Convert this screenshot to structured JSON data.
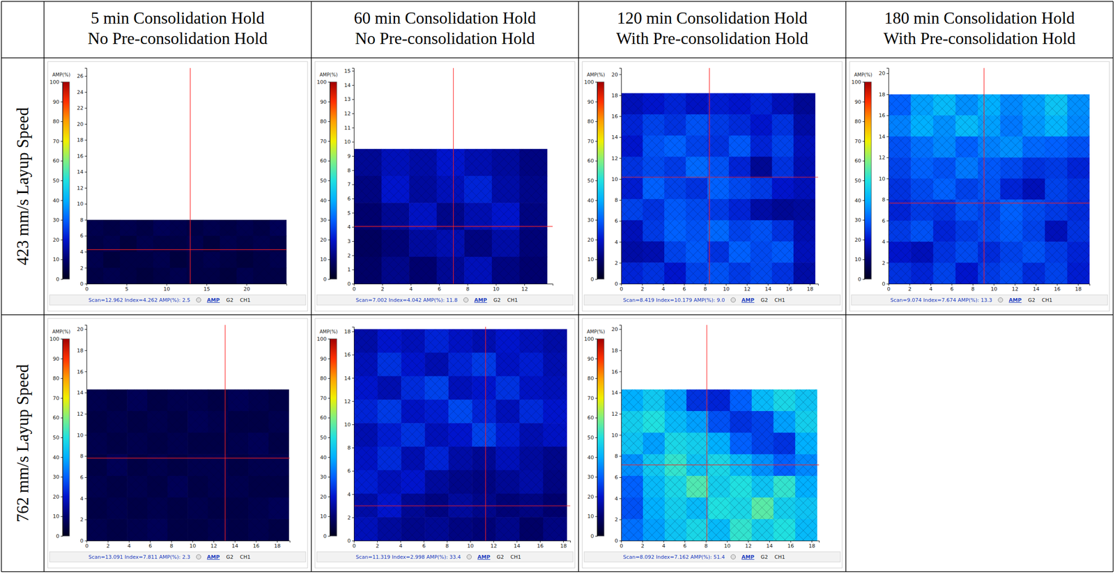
{
  "column_heads": [
    [
      "5 min Consolidation Hold",
      "No Pre-consolidation Hold"
    ],
    [
      "60 min Consolidation Hold",
      "No Pre-consolidation Hold"
    ],
    [
      "120 min Consolidation Hold",
      "With Pre-consolidation Hold"
    ],
    [
      "180 min Consolidation Hold",
      "With Pre-consolidation Hold"
    ]
  ],
  "row_heads": [
    "423 mm/s Layup Speed",
    "762 mm/s Layup Speed"
  ],
  "chart_data": [
    {
      "type": "heatmap",
      "xlim": [
        0,
        25
      ],
      "xticks": [
        0,
        5,
        10,
        15,
        20
      ],
      "ylim": [
        0,
        27
      ],
      "yticks": [
        0,
        2,
        4,
        6,
        8,
        10,
        12,
        14,
        16,
        18,
        20,
        22,
        24,
        26
      ],
      "extent": {
        "x": [
          0,
          25
        ],
        "y": [
          0,
          8
        ]
      },
      "cells": [
        [
          6,
          5,
          6,
          5,
          7,
          6,
          5,
          6,
          5,
          6,
          5,
          7
        ],
        [
          5,
          6,
          4,
          6,
          5,
          5,
          6,
          4,
          6,
          5,
          6,
          5
        ],
        [
          6,
          4,
          5,
          5,
          6,
          4,
          5,
          6,
          5,
          4,
          5,
          6
        ],
        [
          5,
          6,
          5,
          4,
          5,
          6,
          5,
          5,
          4,
          6,
          5,
          5
        ]
      ],
      "colorbar": {
        "label": "AMP(%)",
        "range": [
          0,
          100
        ],
        "ticks": [
          0,
          10,
          20,
          30,
          40,
          50,
          60,
          70,
          80,
          90,
          100
        ]
      },
      "cursor": {
        "x": 12.962,
        "y": 4.262
      },
      "status": "Scan=12.962 Index=4.262 AMP(%): 2.5",
      "tabs": [
        "AMP",
        "G2",
        "CH1"
      ]
    },
    {
      "type": "heatmap",
      "xlim": [
        0,
        14
      ],
      "xticks": [
        0,
        2,
        4,
        6,
        8,
        10,
        12
      ],
      "ylim": [
        0,
        15.2
      ],
      "yticks": [
        0,
        1,
        2,
        3,
        4,
        5,
        6,
        7,
        8,
        9,
        10,
        11,
        12,
        13,
        14,
        15
      ],
      "extent": {
        "x": [
          0,
          13.6
        ],
        "y": [
          0,
          9.5
        ]
      },
      "cells": [
        [
          14,
          18,
          16,
          20,
          17,
          15,
          12
        ],
        [
          12,
          20,
          15,
          18,
          22,
          16,
          13
        ],
        [
          10,
          14,
          19,
          13,
          17,
          20,
          12
        ],
        [
          8,
          11,
          15,
          17,
          12,
          16,
          11
        ],
        [
          9,
          13,
          10,
          14,
          18,
          12,
          10
        ]
      ],
      "colorbar": {
        "label": "AMP(%)",
        "range": [
          0,
          100
        ],
        "ticks": [
          0,
          10,
          20,
          30,
          40,
          50,
          60,
          70,
          80,
          90,
          100
        ]
      },
      "cursor": {
        "x": 7.002,
        "y": 4.042
      },
      "status": "Scan=7.002 Index=4.042 AMP(%): 11.8",
      "tabs": [
        "AMP",
        "G2",
        "CH1"
      ]
    },
    {
      "type": "heatmap",
      "xlim": [
        0,
        18.8
      ],
      "xticks": [
        0,
        2,
        4,
        6,
        8,
        10,
        12,
        14,
        16,
        18
      ],
      "ylim": [
        0,
        20.6
      ],
      "yticks": [
        0,
        2,
        4,
        6,
        8,
        10,
        12,
        14,
        16,
        18,
        20
      ],
      "extent": {
        "x": [
          0,
          18.5
        ],
        "y": [
          0,
          18.2
        ]
      },
      "cells": [
        [
          18,
          20,
          22,
          19,
          21,
          20,
          22,
          18,
          14
        ],
        [
          22,
          26,
          24,
          28,
          25,
          23,
          20,
          24,
          16
        ],
        [
          20,
          28,
          30,
          26,
          24,
          29,
          22,
          26,
          18
        ],
        [
          24,
          27,
          25,
          31,
          28,
          22,
          14,
          24,
          17
        ],
        [
          21,
          30,
          26,
          24,
          30,
          27,
          25,
          20,
          18
        ],
        [
          26,
          24,
          29,
          27,
          25,
          22,
          16,
          14,
          15
        ],
        [
          18,
          25,
          30,
          28,
          31,
          26,
          28,
          24,
          17
        ],
        [
          16,
          17,
          26,
          29,
          24,
          30,
          27,
          29,
          18
        ],
        [
          22,
          24,
          20,
          26,
          28,
          25,
          27,
          24,
          16
        ]
      ],
      "colorbar": {
        "label": "AMP(%)",
        "range": [
          0,
          100
        ],
        "ticks": [
          0,
          10,
          20,
          30,
          40,
          50,
          60,
          70,
          80,
          90,
          100
        ]
      },
      "cursor": {
        "x": 8.419,
        "y": 10.179
      },
      "status": "Scan=8.419 Index=10.179 AMP(%): 9.0",
      "tabs": [
        "AMP",
        "G2",
        "CH1"
      ]
    },
    {
      "type": "heatmap",
      "xlim": [
        0,
        19.1
      ],
      "xticks": [
        0,
        2,
        4,
        6,
        8,
        10,
        12,
        14,
        16,
        18
      ],
      "ylim": [
        0,
        20.5
      ],
      "yticks": [
        0,
        2,
        4,
        6,
        8,
        10,
        12,
        14,
        16,
        18,
        20
      ],
      "extent": {
        "x": [
          0,
          19.1
        ],
        "y": [
          0,
          18
        ]
      },
      "cells": [
        [
          30,
          38,
          42,
          36,
          40,
          35,
          38,
          44,
          36
        ],
        [
          34,
          40,
          36,
          42,
          38,
          33,
          37,
          41,
          35
        ],
        [
          28,
          32,
          35,
          30,
          34,
          36,
          31,
          30,
          28
        ],
        [
          26,
          30,
          28,
          33,
          29,
          27,
          24,
          25,
          22
        ],
        [
          24,
          27,
          30,
          26,
          28,
          22,
          18,
          26,
          24
        ],
        [
          22,
          25,
          24,
          28,
          26,
          30,
          27,
          25,
          23
        ],
        [
          25,
          28,
          22,
          25,
          27,
          29,
          26,
          18,
          24
        ],
        [
          20,
          18,
          24,
          27,
          23,
          26,
          28,
          25,
          22
        ],
        [
          24,
          22,
          26,
          20,
          25,
          27,
          23,
          26,
          21
        ]
      ],
      "colorbar": {
        "label": "AMP(%)",
        "range": [
          0,
          100
        ],
        "ticks": [
          0,
          10,
          20,
          30,
          40,
          50,
          60,
          70,
          80,
          90,
          100
        ]
      },
      "cursor": {
        "x": 9.074,
        "y": 7.674
      },
      "status": "Scan=9.074 Index=7.674 AMP(%): 13.3",
      "tabs": [
        "AMP",
        "G2",
        "CH1"
      ]
    },
    {
      "type": "heatmap",
      "xlim": [
        0,
        19.2
      ],
      "xticks": [
        0,
        2,
        4,
        6,
        8,
        10,
        12,
        14,
        16,
        18
      ],
      "ylim": [
        0,
        20.4
      ],
      "yticks": [
        0,
        2,
        4,
        6,
        8,
        10,
        12,
        14,
        16,
        18,
        20
      ],
      "extent": {
        "x": [
          0,
          19.1
        ],
        "y": [
          0,
          14.3
        ]
      },
      "cells": [
        [
          6,
          5,
          7,
          5,
          6,
          6,
          5,
          7,
          6,
          5
        ],
        [
          5,
          6,
          5,
          6,
          5,
          7,
          6,
          5,
          5,
          6
        ],
        [
          6,
          5,
          6,
          5,
          6,
          5,
          5,
          6,
          7,
          5
        ],
        [
          5,
          7,
          5,
          6,
          5,
          6,
          6,
          5,
          6,
          6
        ],
        [
          6,
          5,
          6,
          5,
          7,
          5,
          6,
          6,
          5,
          5
        ],
        [
          5,
          6,
          5,
          6,
          5,
          6,
          5,
          5,
          6,
          7
        ],
        [
          6,
          5,
          6,
          7,
          5,
          5,
          6,
          5,
          6,
          5
        ]
      ],
      "colorbar": {
        "label": "AMP(%)",
        "range": [
          0,
          100
        ],
        "ticks": [
          0,
          10,
          20,
          30,
          40,
          50,
          60,
          70,
          80,
          90,
          100
        ]
      },
      "cursor": {
        "x": 13.091,
        "y": 7.811
      },
      "status": "Scan=13.091 Index=7.811 AMP(%): 2.3",
      "tabs": [
        "AMP",
        "G2",
        "CH1"
      ]
    },
    {
      "type": "heatmap",
      "xlim": [
        0,
        18.6
      ],
      "xticks": [
        0,
        2,
        4,
        6,
        8,
        10,
        12,
        14,
        16,
        18
      ],
      "ylim": [
        0,
        18.4
      ],
      "yticks": [
        0,
        2,
        4,
        6,
        8,
        10,
        12,
        14,
        16,
        18
      ],
      "extent": {
        "x": [
          0,
          18.3
        ],
        "y": [
          0,
          18.2
        ]
      },
      "cells": [
        [
          16,
          20,
          18,
          22,
          19,
          17,
          20,
          18,
          16
        ],
        [
          18,
          24,
          20,
          17,
          22,
          25,
          19,
          21,
          17
        ],
        [
          20,
          17,
          23,
          26,
          18,
          20,
          24,
          19,
          18
        ],
        [
          22,
          25,
          19,
          21,
          27,
          22,
          18,
          23,
          20
        ],
        [
          17,
          21,
          24,
          18,
          20,
          26,
          21,
          17,
          19
        ],
        [
          19,
          23,
          17,
          22,
          16,
          14,
          18,
          15,
          13
        ],
        [
          21,
          18,
          20,
          15,
          13,
          12,
          14,
          16,
          12
        ],
        [
          16,
          20,
          14,
          12,
          15,
          13,
          11,
          12,
          10
        ],
        [
          18,
          15,
          13,
          14,
          12,
          11,
          13,
          9,
          12
        ]
      ],
      "colorbar": {
        "label": "AMP(%)",
        "range": [
          0,
          100
        ],
        "ticks": [
          0,
          10,
          20,
          30,
          40,
          50,
          60,
          70,
          80,
          90,
          100
        ]
      },
      "cursor": {
        "x": 11.319,
        "y": 2.998
      },
      "status": "Scan=11.319 Index=2.998 AMP(%): 33.4",
      "tabs": [
        "AMP",
        "G2",
        "CH1"
      ]
    },
    {
      "type": "heatmap",
      "xlim": [
        0,
        18.7
      ],
      "xticks": [
        0,
        2,
        4,
        6,
        8,
        10,
        12,
        14,
        16,
        18
      ],
      "ylim": [
        0,
        20.4
      ],
      "yticks": [
        0,
        2,
        4,
        6,
        8,
        10,
        12,
        14,
        16,
        18,
        20
      ],
      "extent": {
        "x": [
          0,
          18.5
        ],
        "y": [
          0,
          14.3
        ]
      },
      "cells": [
        [
          40,
          45,
          38,
          24,
          22,
          30,
          42,
          48,
          44
        ],
        [
          46,
          50,
          42,
          38,
          28,
          24,
          26,
          38,
          46
        ],
        [
          44,
          38,
          48,
          46,
          40,
          30,
          26,
          24,
          40
        ],
        [
          36,
          45,
          52,
          44,
          48,
          42,
          36,
          30,
          35
        ],
        [
          30,
          42,
          48,
          55,
          46,
          50,
          44,
          52,
          40
        ],
        [
          28,
          40,
          46,
          42,
          50,
          48,
          56,
          46,
          44
        ],
        [
          32,
          38,
          44,
          48,
          42,
          52,
          46,
          50,
          42
        ]
      ],
      "colorbar": {
        "label": "AMP(%)",
        "range": [
          0,
          100
        ],
        "ticks": [
          0,
          10,
          20,
          30,
          40,
          50,
          60,
          70,
          80,
          90,
          100
        ]
      },
      "cursor": {
        "x": 8.092,
        "y": 7.162
      },
      "status": "Scan=8.092 Index=7.162 AMP(%): 51.4",
      "tabs": [
        "AMP",
        "G2",
        "CH1"
      ]
    }
  ]
}
